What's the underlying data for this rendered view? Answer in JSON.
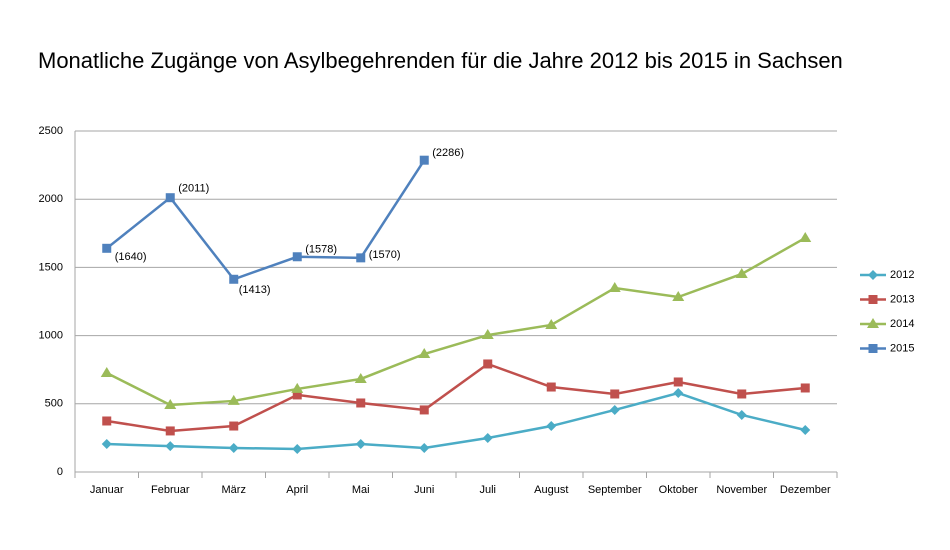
{
  "chart_data": {
    "type": "line",
    "title": "Monatliche Zugänge von Asylbegehrenden für die Jahre 2012 bis 2015 in Sachsen",
    "categories": [
      "Januar",
      "Februar",
      "März",
      "April",
      "Mai",
      "Juni",
      "Juli",
      "August",
      "September",
      "Oktober",
      "November",
      "Dezember"
    ],
    "series": [
      {
        "name": "2012",
        "color": "#4bacc6",
        "marker": "diamond",
        "values": [
          205,
          190,
          176,
          169,
          205,
          176,
          249,
          337,
          455,
          579,
          418,
          308
        ]
      },
      {
        "name": "2013",
        "color": "#c0504d",
        "marker": "square",
        "values": [
          374,
          301,
          337,
          565,
          506,
          455,
          792,
          623,
          572,
          660,
          572,
          616
        ]
      },
      {
        "name": "2014",
        "color": "#9bbb59",
        "marker": "triangle",
        "values": [
          726,
          491,
          521,
          609,
          682,
          865,
          1004,
          1078,
          1349,
          1283,
          1452,
          1716
        ]
      },
      {
        "name": "2015",
        "color": "#4f81bd",
        "marker": "square",
        "values": [
          1640,
          2011,
          1413,
          1578,
          1570,
          2286,
          null,
          null,
          null,
          null,
          null,
          null
        ],
        "value_labels": [
          "(1640)",
          "(2011)",
          "(1413)",
          "(1578)",
          "(1570)",
          "(2286)",
          null,
          null,
          null,
          null,
          null,
          null
        ]
      }
    ],
    "ylim": [
      0,
      2500
    ],
    "yticks": [
      0,
      500,
      1000,
      1500,
      2000,
      2500
    ],
    "grid": true,
    "legend": "right"
  }
}
